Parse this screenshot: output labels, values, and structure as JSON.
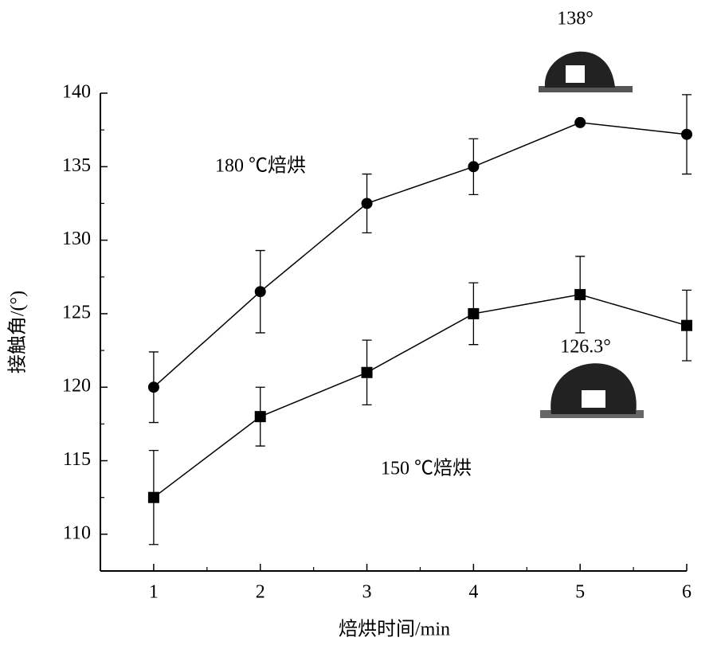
{
  "chart_data": {
    "type": "line",
    "xlabel": "焙烘时间/min",
    "ylabel": "接触角/(°)",
    "x": [
      1,
      2,
      3,
      4,
      5,
      6
    ],
    "series": [
      {
        "name": "180 ℃焙烘",
        "color": "#000000",
        "marker": "circle",
        "values": [
          120,
          126.5,
          132.5,
          135,
          138,
          137.2
        ],
        "errors": [
          2.4,
          2.8,
          2.0,
          1.9,
          0,
          2.7
        ]
      },
      {
        "name": "150 ℃焙烘",
        "color": "#000000",
        "marker": "square",
        "values": [
          112.5,
          118,
          121,
          125,
          126.3,
          124.2
        ],
        "errors": [
          3.2,
          2.0,
          2.2,
          2.1,
          2.6,
          2.4
        ]
      }
    ],
    "annotations": [
      "138°",
      "126.3°"
    ],
    "xlim": [
      0.5,
      6
    ],
    "ylim": [
      107.5,
      140
    ],
    "xticks": [
      1,
      2,
      3,
      4,
      5,
      6
    ],
    "yticks": [
      110,
      115,
      120,
      125,
      130,
      135,
      140
    ],
    "xminorticks": [
      1.5,
      2.5,
      3.5,
      4.5,
      5.5
    ],
    "yminorticks": [
      112.5,
      117.5,
      122.5,
      127.5,
      132.5,
      137.5
    ],
    "grid": false
  }
}
